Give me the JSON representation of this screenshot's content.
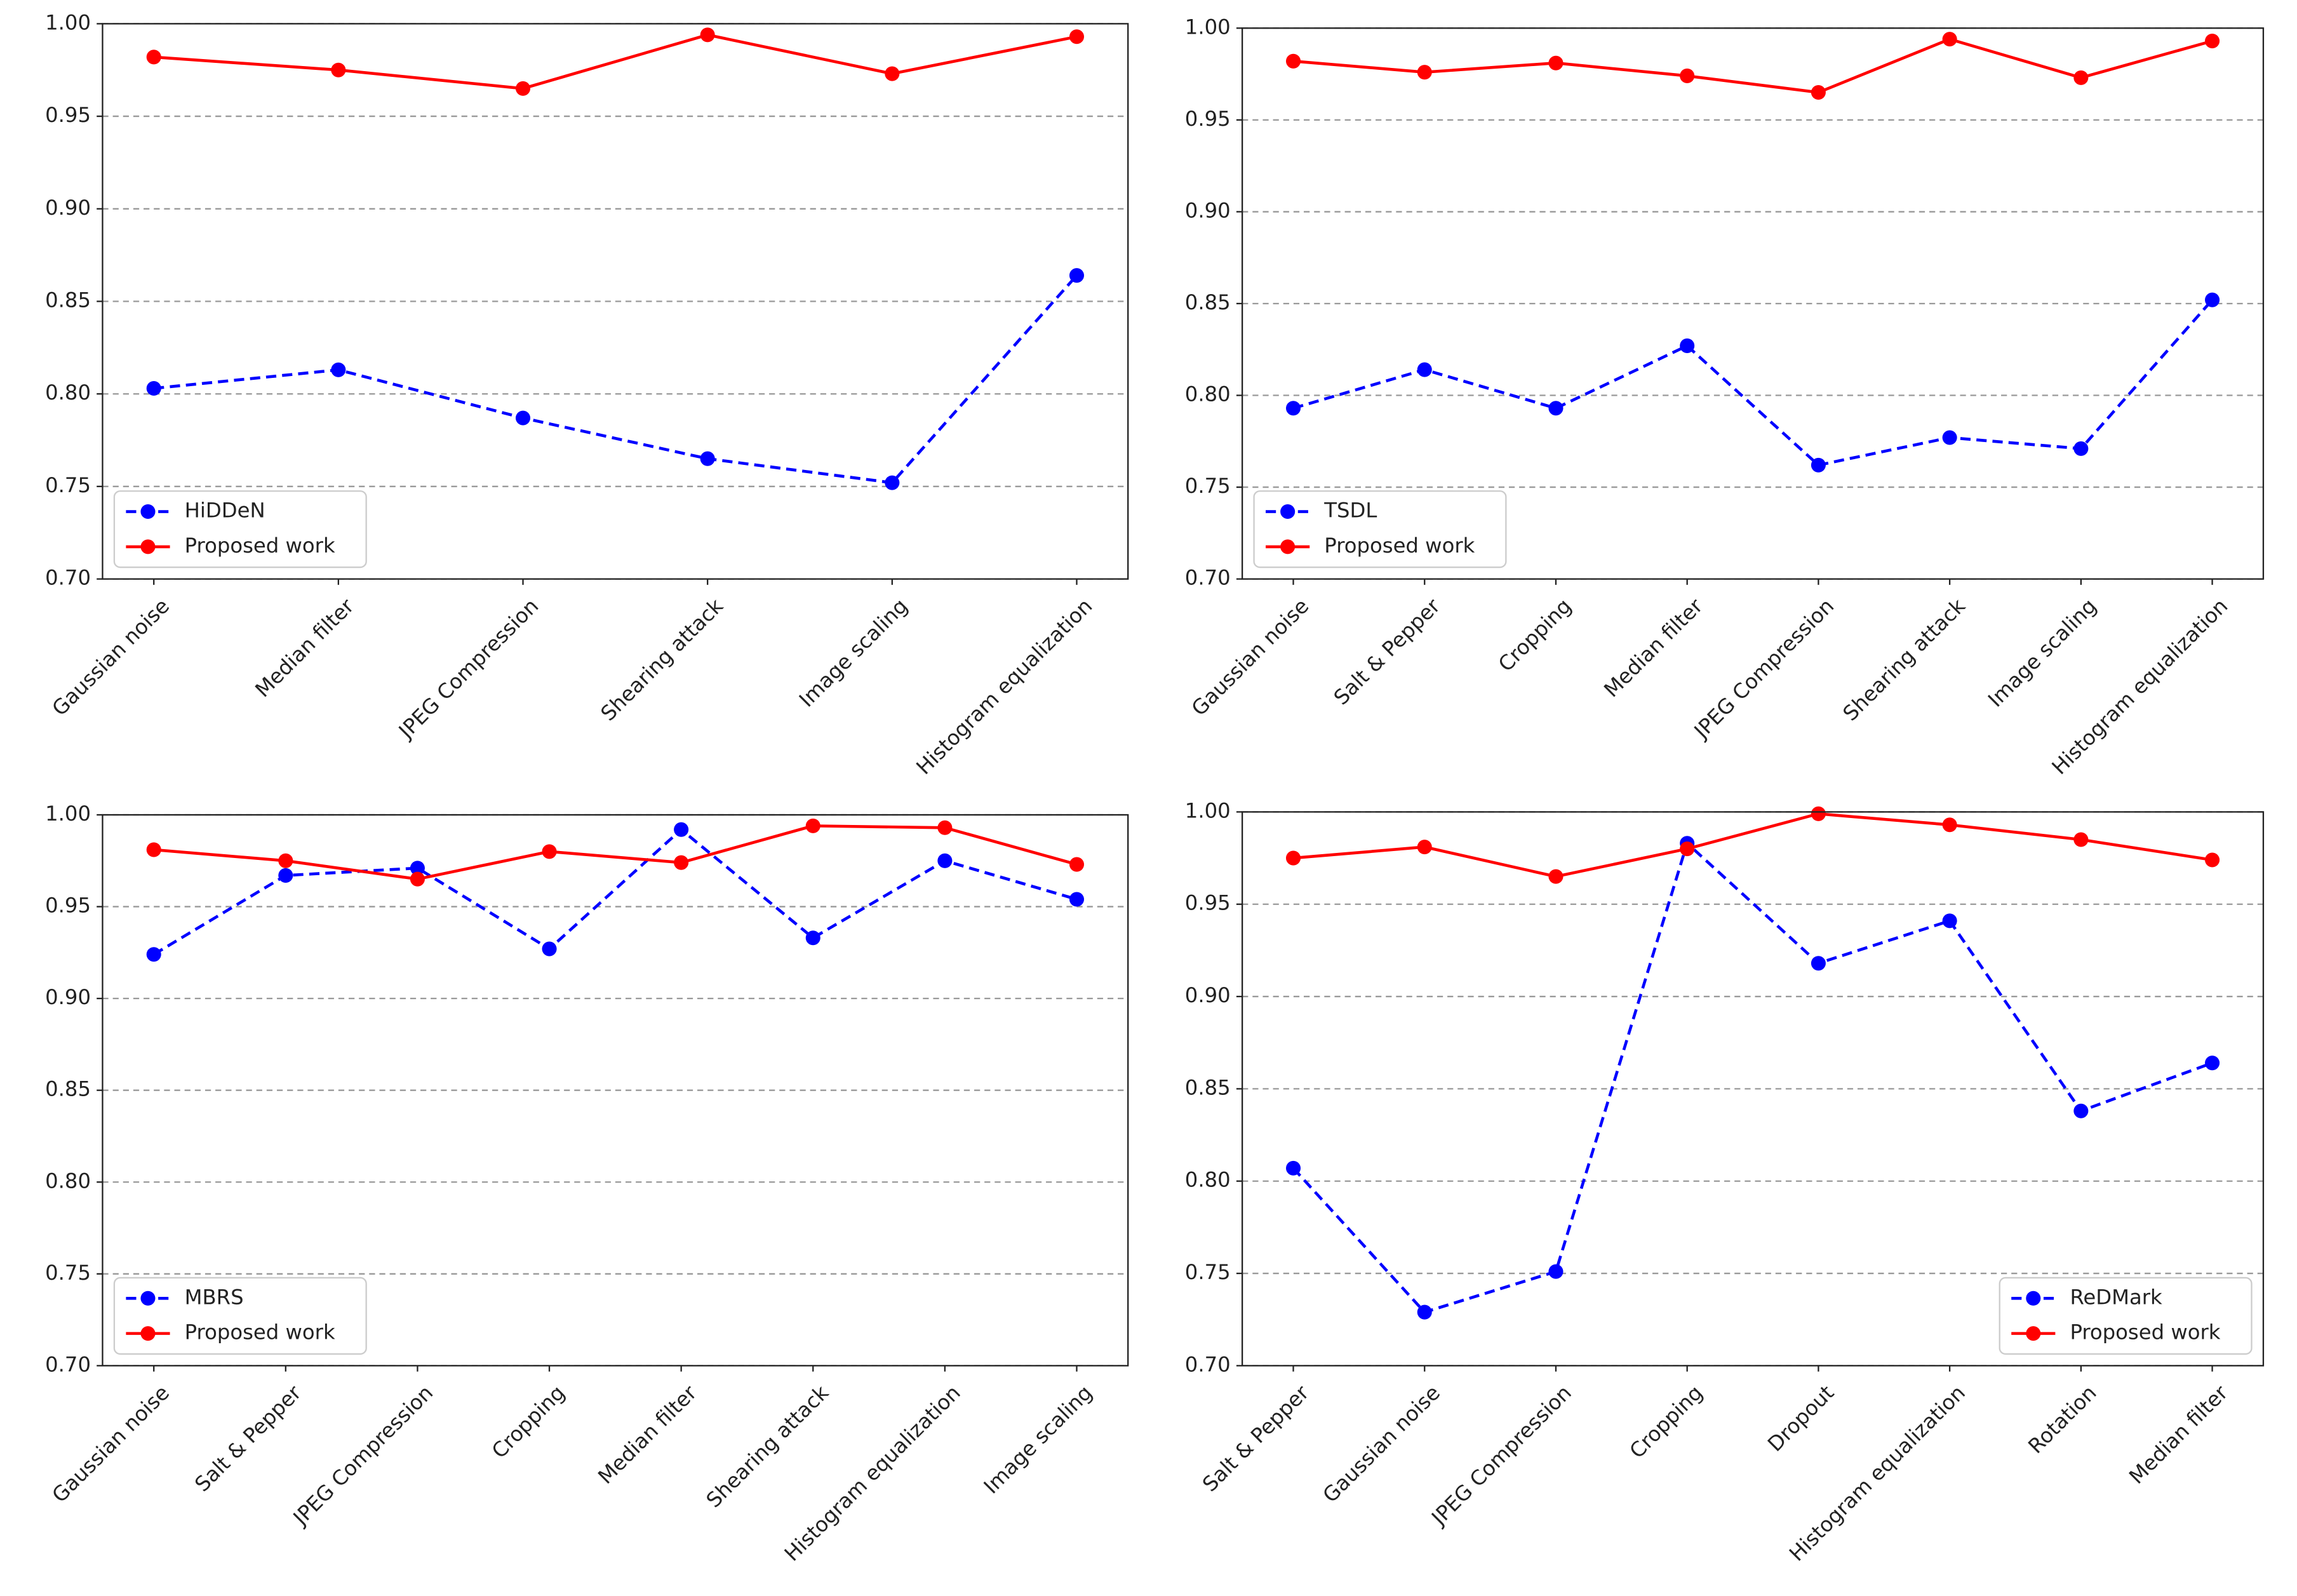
{
  "chart_data": [
    {
      "type": "line",
      "categories": [
        "Gaussian noise",
        "Median filter",
        "JPEG Compression",
        "Shearing attack",
        "Image scaling",
        "Histogram equalization"
      ],
      "series": [
        {
          "name": "HiDDeN",
          "color": "#0000ff",
          "linestyle": "dashed",
          "values": [
            0.803,
            0.813,
            0.787,
            0.765,
            0.752,
            0.864
          ]
        },
        {
          "name": "Proposed work",
          "color": "#ff0000",
          "linestyle": "solid",
          "values": [
            0.982,
            0.975,
            0.965,
            0.994,
            0.973,
            0.993
          ]
        }
      ],
      "ylim": [
        0.7,
        1.0
      ],
      "yticks": [
        {
          "value": 0.7,
          "label": "0.70"
        },
        {
          "value": 0.75,
          "label": "0.75"
        },
        {
          "value": 0.8,
          "label": "0.80"
        },
        {
          "value": 0.85,
          "label": "0.85"
        },
        {
          "value": 0.9,
          "label": "0.90"
        },
        {
          "value": 0.95,
          "label": "0.95"
        },
        {
          "value": 1.0,
          "label": "1.00"
        }
      ],
      "grid": true,
      "legend": "lower left"
    },
    {
      "type": "line",
      "categories": [
        "Gaussian noise",
        "Salt & Pepper",
        "Cropping",
        "Median filter",
        "JPEG Compression",
        "Shearing attack",
        "Image scaling",
        "Histogram equalization"
      ],
      "series": [
        {
          "name": "TSDL",
          "color": "#0000ff",
          "linestyle": "dashed",
          "values": [
            0.793,
            0.814,
            0.793,
            0.827,
            0.762,
            0.777,
            0.771,
            0.852
          ]
        },
        {
          "name": "Proposed work",
          "color": "#ff0000",
          "linestyle": "solid",
          "values": [
            0.982,
            0.976,
            0.981,
            0.974,
            0.965,
            0.994,
            0.973,
            0.993
          ]
        }
      ],
      "ylim": [
        0.7,
        1.0
      ],
      "yticks": [
        {
          "value": 0.7,
          "label": "0.70"
        },
        {
          "value": 0.75,
          "label": "0.75"
        },
        {
          "value": 0.8,
          "label": "0.80"
        },
        {
          "value": 0.85,
          "label": "0.85"
        },
        {
          "value": 0.9,
          "label": "0.90"
        },
        {
          "value": 0.95,
          "label": "0.95"
        },
        {
          "value": 1.0,
          "label": "1.00"
        }
      ],
      "grid": true,
      "legend": "lower left"
    },
    {
      "type": "line",
      "categories": [
        "Gaussian noise",
        "Salt & Pepper",
        "JPEG Compression",
        "Cropping",
        "Median filter",
        "Shearing attack",
        "Histogram equalization",
        "Image scaling"
      ],
      "series": [
        {
          "name": "MBRS",
          "color": "#0000ff",
          "linestyle": "dashed",
          "values": [
            0.924,
            0.967,
            0.971,
            0.927,
            0.992,
            0.933,
            0.975,
            0.954
          ]
        },
        {
          "name": "Proposed work",
          "color": "#ff0000",
          "linestyle": "solid",
          "values": [
            0.981,
            0.975,
            0.965,
            0.98,
            0.974,
            0.994,
            0.993,
            0.973
          ]
        }
      ],
      "ylim": [
        0.7,
        1.0
      ],
      "yticks": [
        {
          "value": 0.7,
          "label": "0.70"
        },
        {
          "value": 0.75,
          "label": "0.75"
        },
        {
          "value": 0.8,
          "label": "0.80"
        },
        {
          "value": 0.85,
          "label": "0.85"
        },
        {
          "value": 0.9,
          "label": "0.90"
        },
        {
          "value": 0.95,
          "label": "0.95"
        },
        {
          "value": 1.0,
          "label": "1.00"
        }
      ],
      "grid": true,
      "legend": "lower left"
    },
    {
      "type": "line",
      "categories": [
        "Salt & Pepper",
        "Gaussian noise",
        "JPEG Compression",
        "Cropping",
        "Dropout",
        "Histogram equalization",
        "Rotation",
        "Median filter"
      ],
      "series": [
        {
          "name": "ReDMark",
          "color": "#0000ff",
          "linestyle": "dashed",
          "values": [
            0.807,
            0.729,
            0.751,
            0.983,
            0.918,
            0.941,
            0.838,
            0.864
          ]
        },
        {
          "name": "Proposed work",
          "color": "#ff0000",
          "linestyle": "solid",
          "values": [
            0.975,
            0.981,
            0.965,
            0.98,
            0.999,
            0.993,
            0.985,
            0.974
          ]
        }
      ],
      "ylim": [
        0.7,
        1.0
      ],
      "yticks": [
        {
          "value": 0.7,
          "label": "0.70"
        },
        {
          "value": 0.75,
          "label": "0.75"
        },
        {
          "value": 0.8,
          "label": "0.80"
        },
        {
          "value": 0.85,
          "label": "0.85"
        },
        {
          "value": 0.9,
          "label": "0.90"
        },
        {
          "value": 0.95,
          "label": "0.95"
        },
        {
          "value": 1.0,
          "label": "1.00"
        }
      ],
      "grid": true,
      "legend": "lower right"
    }
  ]
}
